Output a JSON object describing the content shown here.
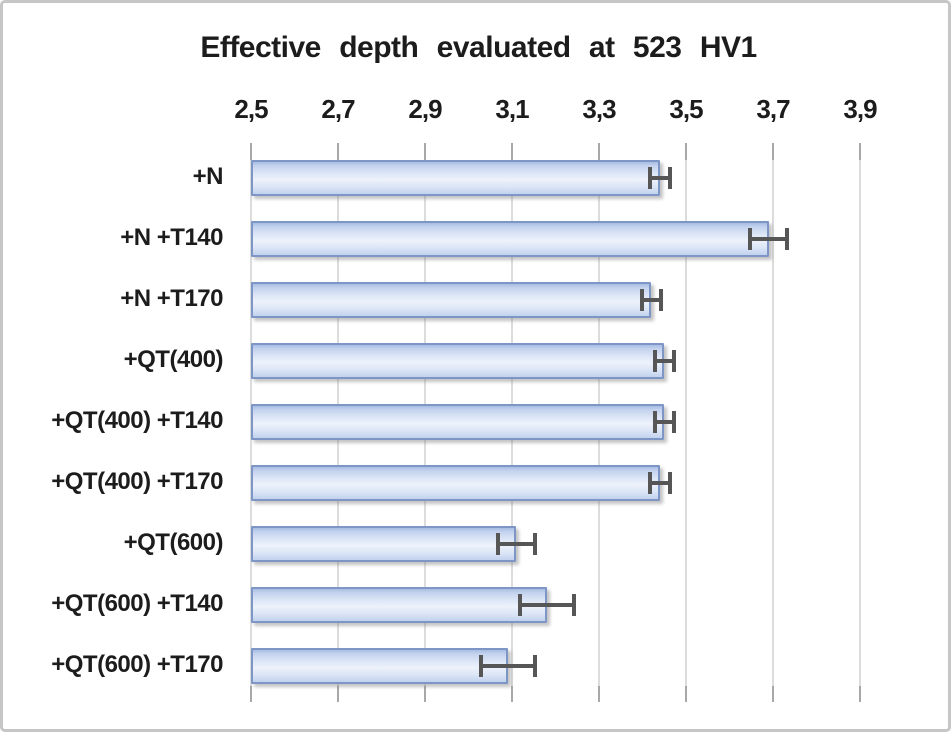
{
  "chart_data": {
    "type": "bar",
    "orientation": "horizontal",
    "title": "Effective depth evaluated at 523 HV1",
    "categories": [
      "+N",
      "+N +T140",
      "+N +T170",
      "+QT(400)",
      "+QT(400) +T140",
      "+QT(400) +T170",
      "+QT(600)",
      "+QT(600) +T140",
      "+QT(600) +T170"
    ],
    "values": [
      3.44,
      3.69,
      3.42,
      3.45,
      3.45,
      3.44,
      3.11,
      3.18,
      3.09
    ],
    "error_bars": [
      0.02,
      0.04,
      0.02,
      0.02,
      0.02,
      0.02,
      0.04,
      0.06,
      0.06
    ],
    "xlim": [
      2.5,
      3.9
    ],
    "xtick_labels": [
      "2,5",
      "2,7",
      "2,9",
      "3,1",
      "3,3",
      "3,5",
      "3,7",
      "3,9"
    ],
    "xtick_values": [
      2.5,
      2.7,
      2.9,
      3.1,
      3.3,
      3.5,
      3.7,
      3.9
    ],
    "decimal_separator": ",",
    "grid": true,
    "legend": "none",
    "colors": {
      "bar_fill_light": "#edf2fb",
      "bar_fill_mid": "#c6d5f0",
      "bar_border": "#7e96c5",
      "error_bar": "#565656",
      "gridline": "#dcdcdc",
      "axis_tick": "#a8a8a8",
      "title_text": "#1c1c1c",
      "figure_border": "#c6c6c6",
      "background": "#ffffff"
    }
  }
}
